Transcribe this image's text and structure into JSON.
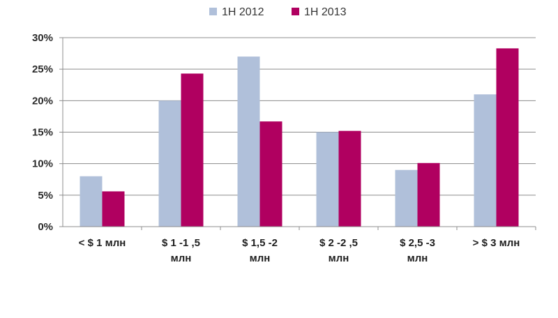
{
  "chart_data": {
    "type": "bar",
    "categories": [
      [
        "<  $ 1 млн"
      ],
      [
        "$ 1 -1 ,5",
        "млн"
      ],
      [
        "$ 1,5 -2",
        "млн"
      ],
      [
        "$ 2 -2 ,5",
        "млн"
      ],
      [
        "$ 2,5 -3",
        "млн"
      ],
      [
        ">  $ 3 млн"
      ]
    ],
    "series": [
      {
        "name": "1H 2012",
        "color": "#b0c0da",
        "values": [
          8,
          20,
          27,
          15,
          9,
          21
        ]
      },
      {
        "name": "1H 2013",
        "color": "#b00060",
        "values": [
          5.6,
          24.3,
          16.7,
          15.2,
          10.1,
          28.3
        ]
      }
    ],
    "ylim": [
      0,
      30
    ],
    "yticks": [
      0,
      5,
      10,
      15,
      20,
      25,
      30
    ],
    "ytick_suffix": "%",
    "grid": true,
    "legend_position": "top-center"
  }
}
